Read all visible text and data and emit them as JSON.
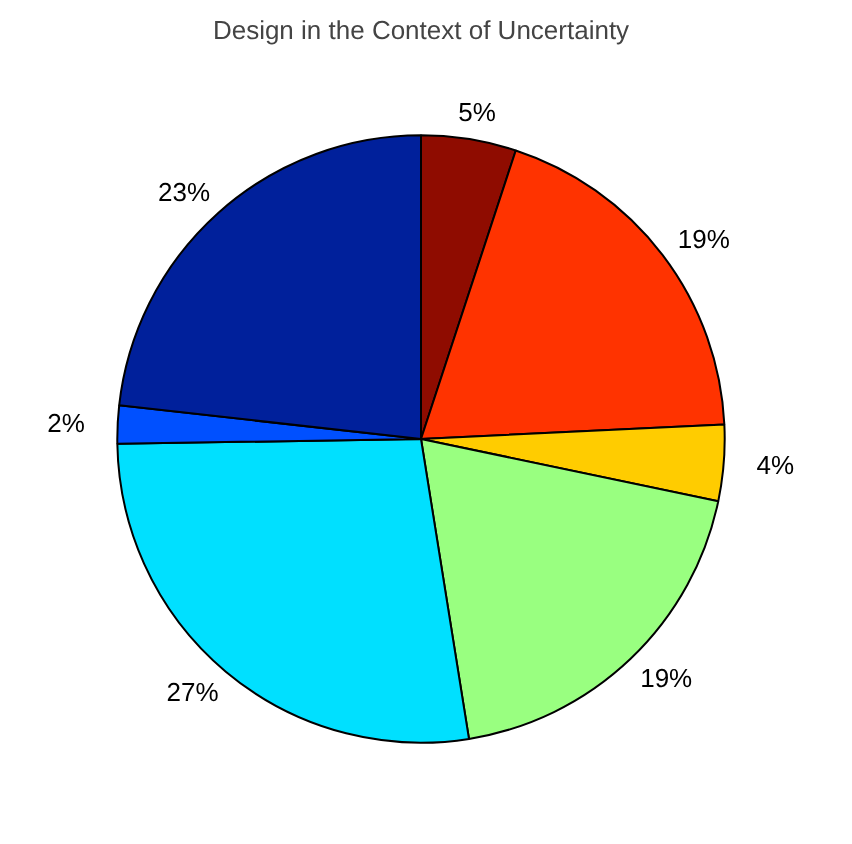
{
  "chart_data": {
    "type": "pie",
    "title": "Design in the Context of Uncertainty",
    "categories": [
      null,
      null,
      null,
      null,
      null,
      null,
      null
    ],
    "values": [
      5,
      19,
      4,
      19,
      27,
      2,
      23
    ],
    "colors": [
      "#8f0c00",
      "#ff3300",
      "#ffcc00",
      "#99ff80",
      "#00e0ff",
      "#0050ff",
      "#00209b"
    ],
    "value_labels": [
      "5%",
      "19%",
      "4%",
      "19%",
      "27%",
      "2%",
      "23%"
    ]
  }
}
